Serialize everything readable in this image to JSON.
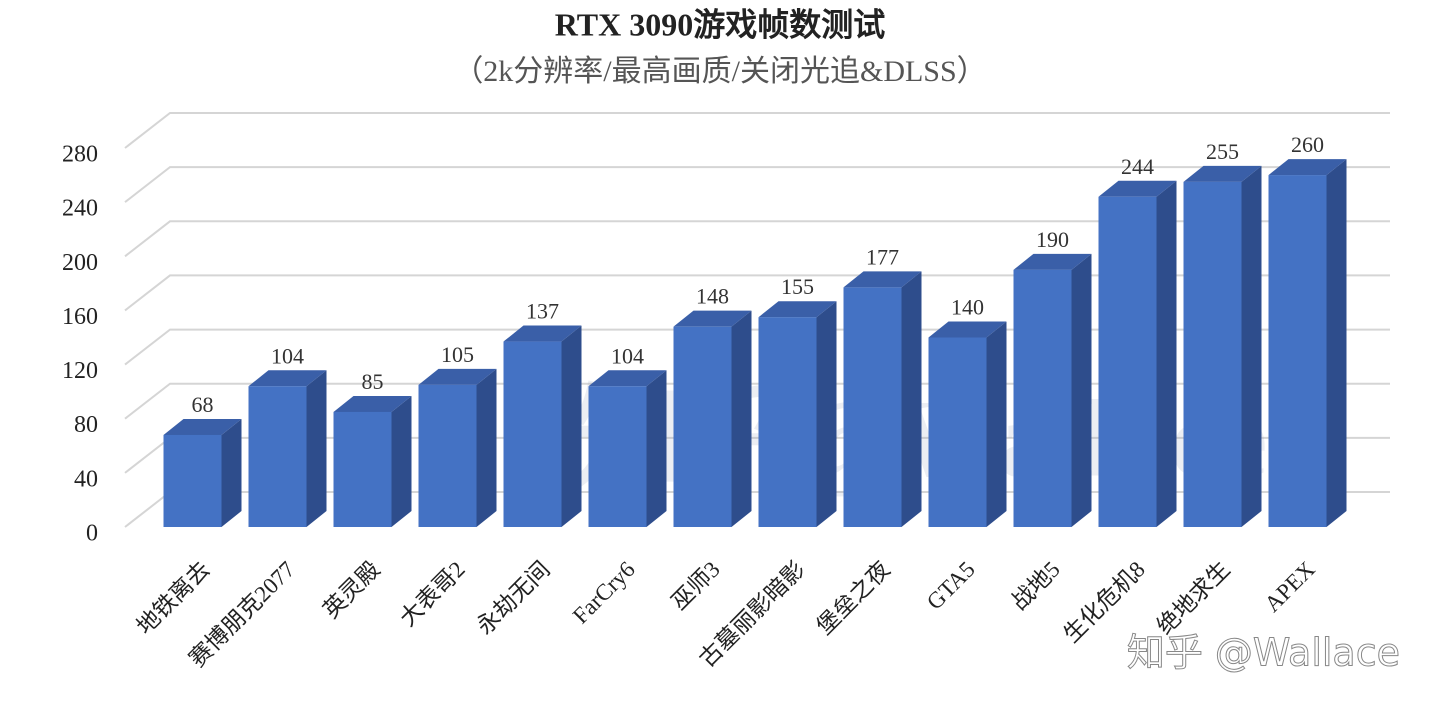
{
  "chart_data": {
    "type": "bar3d",
    "title": "RTX 3090游戏帧数测试",
    "subtitle": "（2k分辨率/最高画质/关闭光追&DLSS）",
    "categories": [
      "地铁离去",
      "赛博朋克2077",
      "英灵殿",
      "大表哥2",
      "永劫无间",
      "FarCry6",
      "巫师3",
      "古墓丽影暗影",
      "堡垒之夜",
      "GTA5",
      "战地5",
      "生化危机8",
      "绝地求生",
      "APEX"
    ],
    "values": [
      68,
      104,
      85,
      105,
      137,
      104,
      148,
      155,
      177,
      140,
      190,
      244,
      255,
      260
    ],
    "color": "#4472c4",
    "ylim": [
      0,
      280
    ],
    "yticks": [
      0,
      40,
      80,
      120,
      160,
      200,
      240,
      280
    ],
    "grid": true,
    "watermarks": [
      "知乎@Wallace",
      "知乎 @Wallace"
    ]
  }
}
